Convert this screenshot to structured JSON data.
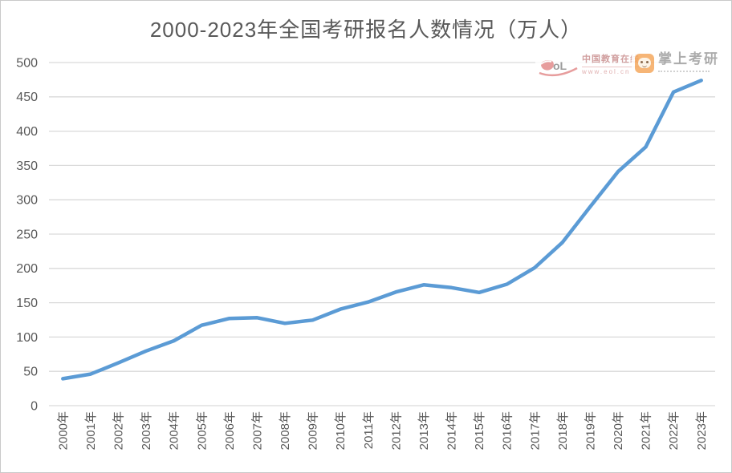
{
  "title": "2000-2023年全国考研报名人数情况（万人）",
  "watermarks": {
    "eol": {
      "name": "中国教育在线",
      "url": "www.eol.cn"
    },
    "zsky": {
      "name": "掌上考研"
    }
  },
  "chart_data": {
    "type": "line",
    "title": "2000-2023年全国考研报名人数情况（万人）",
    "categories": [
      "2000年",
      "2001年",
      "2002年",
      "2003年",
      "2004年",
      "2005年",
      "2006年",
      "2007年",
      "2008年",
      "2009年",
      "2010年",
      "2011年",
      "2012年",
      "2013年",
      "2014年",
      "2015年",
      "2016年",
      "2017年",
      "2018年",
      "2019年",
      "2020年",
      "2021年",
      "2022年",
      "2023年"
    ],
    "values": [
      39.2,
      46,
      62.4,
      79.7,
      94.5,
      117.2,
      127.1,
      128.2,
      120,
      124.6,
      140.6,
      151.1,
      165.6,
      176,
      172,
      164.9,
      177,
      201,
      238,
      290,
      341,
      377,
      457,
      474
    ],
    "xlabel": "",
    "ylabel": "",
    "ylim": [
      0,
      500
    ],
    "ytick_interval": 50,
    "grid": true,
    "legend": "none",
    "colors": {
      "line": "#5B9BD5",
      "grid": "#D9D9D9",
      "text": "#595959"
    }
  }
}
